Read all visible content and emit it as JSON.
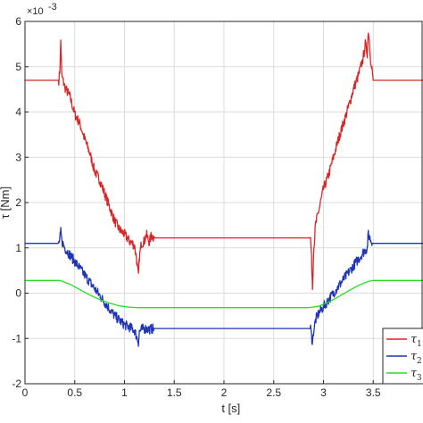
{
  "chart_data": {
    "type": "line",
    "title": "",
    "xlabel": "t [s]",
    "ylabel": "τ [Nm]",
    "y_multiplier": "×10",
    "y_multiplier_exp": "-3",
    "xlim": [
      0,
      4
    ],
    "ylim": [
      -2,
      6
    ],
    "xticks": [
      "0",
      "0.5",
      "1",
      "1.5",
      "2",
      "2.5",
      "3",
      "3.5"
    ],
    "yticks": [
      "-2",
      "-1",
      "0",
      "1",
      "2",
      "3",
      "4",
      "5",
      "6"
    ],
    "grid": true,
    "legend_position": "bottom-right",
    "series": [
      {
        "name": "τ1",
        "legend_symbol": "τ",
        "legend_sub": "1",
        "color": "#d62728",
        "x": [
          0,
          0.34,
          0.35,
          0.36,
          0.37,
          0.4,
          0.45,
          0.5,
          0.55,
          0.6,
          0.65,
          0.7,
          0.75,
          0.8,
          0.85,
          0.9,
          0.95,
          1.0,
          1.05,
          1.08,
          1.1,
          1.12,
          1.14,
          1.15,
          1.17,
          1.2,
          1.22,
          1.25,
          1.27,
          1.3,
          1.32,
          2.87,
          2.88,
          2.89,
          2.9,
          2.92,
          2.95,
          3.0,
          3.05,
          3.1,
          3.15,
          3.2,
          3.25,
          3.3,
          3.35,
          3.4,
          3.42,
          3.44,
          3.45,
          3.46,
          3.48,
          3.49,
          3.5,
          4.0
        ],
        "y": [
          4.7,
          4.7,
          4.9,
          5.58,
          4.8,
          4.55,
          4.35,
          3.95,
          3.75,
          3.4,
          3.1,
          2.7,
          2.5,
          2.2,
          1.9,
          1.6,
          1.4,
          1.3,
          1.15,
          1.1,
          1.05,
          0.8,
          0.35,
          0.8,
          1.1,
          1.15,
          1.3,
          1.12,
          1.28,
          1.22,
          1.22,
          1.22,
          0.75,
          0.12,
          0.9,
          1.5,
          1.8,
          2.3,
          2.6,
          3.0,
          3.4,
          3.75,
          4.1,
          4.5,
          4.8,
          5.2,
          5.5,
          5.3,
          5.82,
          5.6,
          5.0,
          4.9,
          4.7,
          4.7
        ],
        "noise": true
      },
      {
        "name": "τ2",
        "legend_symbol": "τ",
        "legend_sub": "2",
        "color": "#1f35b4",
        "x": [
          0,
          0.34,
          0.35,
          0.36,
          0.37,
          0.4,
          0.45,
          0.5,
          0.55,
          0.6,
          0.65,
          0.7,
          0.75,
          0.8,
          0.85,
          0.9,
          0.95,
          1.0,
          1.05,
          1.1,
          1.12,
          1.14,
          1.15,
          1.17,
          1.2,
          1.25,
          1.3,
          1.32,
          2.87,
          2.88,
          2.89,
          2.9,
          2.92,
          2.95,
          3.0,
          3.05,
          3.1,
          3.15,
          3.2,
          3.25,
          3.3,
          3.35,
          3.4,
          3.44,
          3.45,
          3.47,
          3.49,
          3.5,
          4.0
        ],
        "y": [
          1.1,
          1.1,
          1.2,
          1.35,
          1.15,
          1.0,
          0.85,
          0.7,
          0.55,
          0.4,
          0.25,
          0.1,
          -0.05,
          -0.2,
          -0.35,
          -0.5,
          -0.6,
          -0.7,
          -0.75,
          -0.82,
          -0.95,
          -1.08,
          -0.85,
          -0.8,
          -0.78,
          -0.8,
          -0.78,
          -0.78,
          -0.78,
          -0.95,
          -1.1,
          -0.85,
          -0.6,
          -0.45,
          -0.3,
          -0.15,
          0.0,
          0.15,
          0.3,
          0.45,
          0.6,
          0.75,
          0.9,
          1.0,
          1.3,
          1.2,
          1.1,
          1.1,
          1.1
        ],
        "noise": true
      },
      {
        "name": "τ3",
        "legend_symbol": "τ",
        "legend_sub": "3",
        "color": "#22e022",
        "x": [
          0,
          0.35,
          0.45,
          0.55,
          0.65,
          0.75,
          0.85,
          0.95,
          1.05,
          1.15,
          2.85,
          2.95,
          3.05,
          3.15,
          3.25,
          3.35,
          3.45,
          3.5,
          4.0
        ],
        "y": [
          0.28,
          0.28,
          0.2,
          0.08,
          -0.04,
          -0.14,
          -0.22,
          -0.28,
          -0.31,
          -0.32,
          -0.32,
          -0.29,
          -0.2,
          -0.08,
          0.05,
          0.17,
          0.26,
          0.28,
          0.28
        ],
        "noise": false
      }
    ]
  }
}
